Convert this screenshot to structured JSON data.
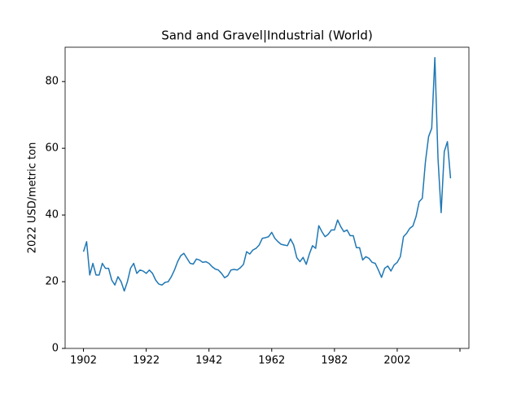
{
  "chart_data": {
    "type": "line",
    "title": "Sand and Gravel|Industrial (World)",
    "y_label": "2022 USD/metric ton",
    "x": [
      1902,
      1903,
      1904,
      1905,
      1906,
      1907,
      1908,
      1909,
      1910,
      1911,
      1912,
      1913,
      1914,
      1915,
      1916,
      1917,
      1918,
      1919,
      1920,
      1921,
      1922,
      1923,
      1924,
      1925,
      1926,
      1927,
      1928,
      1929,
      1930,
      1931,
      1932,
      1933,
      1934,
      1935,
      1936,
      1937,
      1938,
      1939,
      1940,
      1941,
      1942,
      1943,
      1944,
      1945,
      1946,
      1947,
      1948,
      1949,
      1950,
      1951,
      1952,
      1953,
      1954,
      1955,
      1956,
      1957,
      1958,
      1959,
      1960,
      1961,
      1962,
      1963,
      1964,
      1965,
      1966,
      1967,
      1968,
      1969,
      1970,
      1971,
      1972,
      1973,
      1974,
      1975,
      1976,
      1977,
      1978,
      1979,
      1980,
      1981,
      1982,
      1983,
      1984,
      1985,
      1986,
      1987,
      1988,
      1989,
      1990,
      1991,
      1992,
      1993,
      1994,
      1995,
      1996,
      1997,
      1998,
      1999,
      2000,
      2001,
      2002,
      2003,
      2004,
      2005,
      2006,
      2007,
      2008,
      2009,
      2010,
      2011,
      2012,
      2013,
      2014,
      2015,
      2016,
      2017,
      2018,
      2019
    ],
    "series": [
      {
        "color": "#1f77b4",
        "values": [
          29,
          32,
          22,
          25.5,
          22,
          22,
          25.5,
          24,
          24,
          20.5,
          19,
          21.5,
          20,
          17.2,
          20,
          24,
          25.5,
          22.5,
          23.5,
          23.2,
          22.5,
          23.5,
          22.5,
          20.5,
          19.3,
          19,
          19.8,
          20,
          21.5,
          23.5,
          26,
          27.8,
          28.5,
          27,
          25.5,
          25.3,
          26.8,
          26.5,
          25.8,
          26,
          25.5,
          24.5,
          23.8,
          23.5,
          22.5,
          21.2,
          21.8,
          23.5,
          23.7,
          23.5,
          24.2,
          25.2,
          29,
          28.3,
          29.5,
          30,
          31,
          33,
          33.2,
          33.5,
          34.8,
          33,
          32,
          31.2,
          31,
          30.8,
          32.8,
          31,
          27.2,
          26,
          27.3,
          25.2,
          28.3,
          30.8,
          30,
          36.8,
          35,
          33.5,
          34.2,
          35.5,
          35.5,
          38.5,
          36.5,
          35,
          35.5,
          33.8,
          33.8,
          30.2,
          30.2,
          26.5,
          27.5,
          27,
          25.8,
          25.5,
          23.5,
          21.3,
          24,
          24.7,
          23.2,
          25,
          25.8,
          27.5,
          33.5,
          34.5,
          36,
          36.7,
          39.5,
          44,
          45,
          56,
          63.5,
          66,
          87.2,
          57,
          40.7,
          59,
          62,
          51
        ]
      }
    ],
    "xlim": [
      1896.15,
      2024.85
    ],
    "ylim": [
      0,
      90.3
    ],
    "xticks": [
      1902,
      1922,
      1942,
      1962,
      1982,
      2002,
      {
        "value": 2022,
        "label": null
      }
    ],
    "yticks": [
      0,
      20,
      40,
      60,
      80
    ],
    "grid": false
  }
}
